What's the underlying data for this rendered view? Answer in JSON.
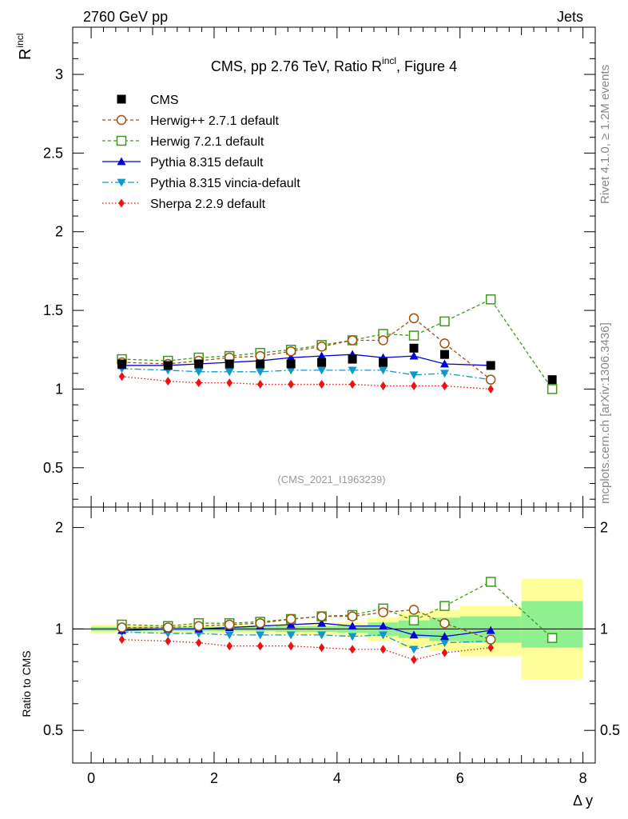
{
  "header": {
    "left": "2760 GeV pp",
    "right": "Jets"
  },
  "side_text": {
    "rivet": "Rivet 4.1.0, ≥ 1.2M events",
    "mcplots": "mcplots.cern.ch [arXiv:1306.3436]"
  },
  "watermark": "(CMS_2021_I1963239)",
  "colors": {
    "cms": "#000000",
    "herwigpp": "#a0520d",
    "herwig7": "#3c9a1a",
    "pythia": "#0000dc",
    "vincia": "#0f99c8",
    "sherpa": "#ee1111",
    "band_outer": "#ffff99",
    "band_inner": "#8ff08f"
  },
  "chart_data": [
    {
      "type": "line",
      "title": "CMS, pp 2.76 TeV, Ratio R",
      "title_sup": "incl",
      "title_suffix": ", Figure 4",
      "ylabel": "R",
      "ylabel_sup": "incl",
      "xlim": [
        -0.3,
        8.2
      ],
      "ylim": [
        0.25,
        3.3
      ],
      "yticks": [
        0.5,
        1,
        1.5,
        2,
        2.5,
        3
      ],
      "ytick_labels": [
        "0.5",
        "1",
        "1.5",
        "2",
        "2.5",
        "3"
      ],
      "legend_position": "top-left",
      "series": [
        {
          "name": "CMS",
          "key": "cms",
          "x": [
            0.5,
            1.25,
            1.75,
            2.25,
            2.75,
            3.25,
            3.75,
            4.25,
            4.75,
            5.25,
            5.75,
            6.5,
            7.5
          ],
          "y": [
            1.16,
            1.15,
            1.16,
            1.16,
            1.16,
            1.16,
            1.17,
            1.19,
            1.17,
            1.26,
            1.22,
            1.15,
            1.06
          ]
        },
        {
          "name": "Herwig++ 2.7.1 default",
          "key": "herwigpp",
          "x": [
            0.5,
            1.25,
            1.75,
            2.25,
            2.75,
            3.25,
            3.75,
            4.25,
            4.75,
            5.25,
            5.75,
            6.5
          ],
          "y": [
            1.17,
            1.16,
            1.18,
            1.2,
            1.21,
            1.24,
            1.27,
            1.31,
            1.31,
            1.45,
            1.29,
            1.06
          ]
        },
        {
          "name": "Herwig 7.2.1 default",
          "key": "herwig7",
          "x": [
            0.5,
            1.25,
            1.75,
            2.25,
            2.75,
            3.25,
            3.75,
            4.25,
            4.75,
            5.25,
            5.75,
            6.5,
            7.5
          ],
          "y": [
            1.19,
            1.18,
            1.2,
            1.21,
            1.23,
            1.25,
            1.28,
            1.31,
            1.35,
            1.34,
            1.43,
            1.57,
            1.0
          ]
        },
        {
          "name": "Pythia 8.315 default",
          "key": "pythia",
          "x": [
            0.5,
            1.25,
            1.75,
            2.25,
            2.75,
            3.25,
            3.75,
            4.25,
            4.75,
            5.25,
            5.75,
            6.5
          ],
          "y": [
            1.15,
            1.15,
            1.16,
            1.17,
            1.18,
            1.2,
            1.21,
            1.22,
            1.2,
            1.21,
            1.16,
            1.15
          ]
        },
        {
          "name": "Pythia 8.315 vincia-default",
          "key": "vincia",
          "x": [
            0.5,
            1.25,
            1.75,
            2.25,
            2.75,
            3.25,
            3.75,
            4.25,
            4.75,
            5.25,
            5.75,
            6.5
          ],
          "y": [
            1.13,
            1.12,
            1.11,
            1.11,
            1.11,
            1.12,
            1.12,
            1.12,
            1.12,
            1.09,
            1.1,
            1.06
          ]
        },
        {
          "name": "Sherpa 2.2.9 default",
          "key": "sherpa",
          "x": [
            0.5,
            1.25,
            1.75,
            2.25,
            2.75,
            3.25,
            3.75,
            4.25,
            4.75,
            5.25,
            5.75,
            6.5
          ],
          "y": [
            1.08,
            1.05,
            1.04,
            1.04,
            1.03,
            1.03,
            1.03,
            1.03,
            1.02,
            1.02,
            1.02,
            1.0
          ]
        }
      ]
    },
    {
      "type": "line",
      "ylabel": "Ratio to CMS",
      "xlabel": "Δ y",
      "xlim": [
        -0.3,
        8.2
      ],
      "ylim": [
        0.4,
        2.3
      ],
      "yscale": "log",
      "xticks": [
        0,
        2,
        4,
        6,
        8
      ],
      "xtick_labels": [
        "0",
        "2",
        "4",
        "6",
        "8"
      ],
      "yticks": [
        0.5,
        1,
        2
      ],
      "ytick_labels": [
        "0.5",
        "1",
        "2"
      ],
      "bands": [
        {
          "x0": 0.0,
          "x1": 1.0,
          "outer": [
            0.97,
            1.03
          ],
          "inner": [
            0.985,
            1.015
          ]
        },
        {
          "x0": 1.0,
          "x1": 1.5,
          "outer": [
            0.97,
            1.03
          ],
          "inner": [
            0.985,
            1.015
          ]
        },
        {
          "x0": 1.5,
          "x1": 2.0,
          "outer": [
            0.97,
            1.03
          ],
          "inner": [
            0.985,
            1.015
          ]
        },
        {
          "x0": 2.0,
          "x1": 2.5,
          "outer": [
            0.97,
            1.03
          ],
          "inner": [
            0.985,
            1.015
          ]
        },
        {
          "x0": 2.5,
          "x1": 3.0,
          "outer": [
            0.97,
            1.03
          ],
          "inner": [
            0.985,
            1.015
          ]
        },
        {
          "x0": 3.0,
          "x1": 3.5,
          "outer": [
            0.965,
            1.035
          ],
          "inner": [
            0.98,
            1.02
          ]
        },
        {
          "x0": 3.5,
          "x1": 4.0,
          "outer": [
            0.96,
            1.04
          ],
          "inner": [
            0.98,
            1.02
          ]
        },
        {
          "x0": 4.0,
          "x1": 4.5,
          "outer": [
            0.95,
            1.05
          ],
          "inner": [
            0.975,
            1.025
          ]
        },
        {
          "x0": 4.5,
          "x1": 5.0,
          "outer": [
            0.92,
            1.08
          ],
          "inner": [
            0.955,
            1.045
          ]
        },
        {
          "x0": 5.0,
          "x1": 5.5,
          "outer": [
            0.88,
            1.12
          ],
          "inner": [
            0.94,
            1.06
          ]
        },
        {
          "x0": 5.5,
          "x1": 6.0,
          "outer": [
            0.86,
            1.14
          ],
          "inner": [
            0.92,
            1.08
          ]
        },
        {
          "x0": 6.0,
          "x1": 7.0,
          "outer": [
            0.83,
            1.17
          ],
          "inner": [
            0.91,
            1.09
          ]
        },
        {
          "x0": 7.0,
          "x1": 8.0,
          "outer": [
            0.71,
            1.41
          ],
          "inner": [
            0.88,
            1.21
          ]
        }
      ],
      "series": [
        {
          "name": "Herwig++ 2.7.1 default",
          "key": "herwigpp",
          "x": [
            0.5,
            1.25,
            1.75,
            2.25,
            2.75,
            3.25,
            3.75,
            4.25,
            4.75,
            5.25,
            5.75,
            6.5
          ],
          "y": [
            1.01,
            1.01,
            1.02,
            1.03,
            1.04,
            1.07,
            1.09,
            1.09,
            1.12,
            1.14,
            1.04,
            0.93
          ]
        },
        {
          "name": "Herwig 7.2.1 default",
          "key": "herwig7",
          "x": [
            0.5,
            1.25,
            1.75,
            2.25,
            2.75,
            3.25,
            3.75,
            4.25,
            4.75,
            5.25,
            5.75,
            6.5,
            7.5
          ],
          "y": [
            1.03,
            1.02,
            1.04,
            1.04,
            1.05,
            1.07,
            1.09,
            1.1,
            1.15,
            1.06,
            1.17,
            1.38,
            0.94
          ]
        },
        {
          "name": "Pythia 8.315 default",
          "key": "pythia",
          "x": [
            0.5,
            1.25,
            1.75,
            2.25,
            2.75,
            3.25,
            3.75,
            4.25,
            4.75,
            5.25,
            5.75,
            6.5
          ],
          "y": [
            0.99,
            1.0,
            1.0,
            1.01,
            1.02,
            1.03,
            1.04,
            1.02,
            1.02,
            0.96,
            0.95,
            0.99
          ]
        },
        {
          "name": "Pythia 8.315 vincia-default",
          "key": "vincia",
          "x": [
            0.5,
            1.25,
            1.75,
            2.25,
            2.75,
            3.25,
            3.75,
            4.25,
            4.75,
            5.25,
            5.75,
            6.5
          ],
          "y": [
            0.98,
            0.97,
            0.97,
            0.96,
            0.96,
            0.96,
            0.96,
            0.95,
            0.96,
            0.87,
            0.91,
            0.92
          ]
        },
        {
          "name": "Sherpa 2.2.9 default",
          "key": "sherpa",
          "x": [
            0.5,
            1.25,
            1.75,
            2.25,
            2.75,
            3.25,
            3.75,
            4.25,
            4.75,
            5.25,
            5.75,
            6.5
          ],
          "y": [
            0.93,
            0.92,
            0.91,
            0.89,
            0.89,
            0.89,
            0.88,
            0.87,
            0.87,
            0.81,
            0.85,
            0.88
          ]
        }
      ]
    }
  ]
}
